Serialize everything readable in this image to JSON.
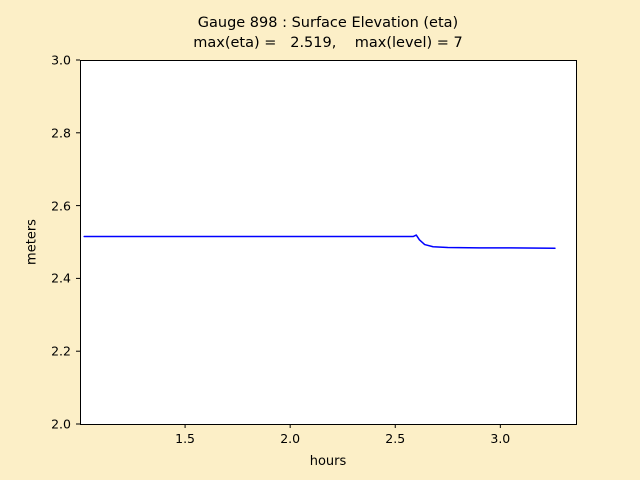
{
  "colors": {
    "figure_background": "#fcefc7",
    "axes_background": "#ffffff",
    "axes_border": "#000000",
    "line": "#0000ff",
    "text": "#000000"
  },
  "chart_data": {
    "type": "line",
    "title": "Gauge 898 : Surface Elevation (eta)",
    "subtitle": "max(eta) =   2.519,    max(level) = 7",
    "xlabel": "hours",
    "ylabel": "meters",
    "xlim": [
      1.0,
      3.36
    ],
    "ylim": [
      2.0,
      3.0
    ],
    "grid": false,
    "legend": false,
    "xticks": {
      "values": [
        1.5,
        2.0,
        2.5,
        3.0
      ],
      "labels": [
        "1.5",
        "2.0",
        "2.5",
        "3.0"
      ]
    },
    "yticks": {
      "values": [
        2.0,
        2.2,
        2.4,
        2.6,
        2.8,
        3.0
      ],
      "labels": [
        "2.0",
        "2.2",
        "2.4",
        "2.6",
        "2.8",
        "3.0"
      ]
    },
    "max_eta": 2.519,
    "max_level": 7,
    "series": [
      {
        "name": "eta",
        "color": "#0000ff",
        "x": [
          1.02,
          1.5,
          2.0,
          2.4,
          2.55,
          2.585,
          2.6,
          2.615,
          2.64,
          2.68,
          2.75,
          2.9,
          3.05,
          3.26
        ],
        "y": [
          2.515,
          2.515,
          2.515,
          2.515,
          2.515,
          2.515,
          2.519,
          2.506,
          2.493,
          2.487,
          2.485,
          2.484,
          2.484,
          2.483
        ]
      }
    ]
  }
}
